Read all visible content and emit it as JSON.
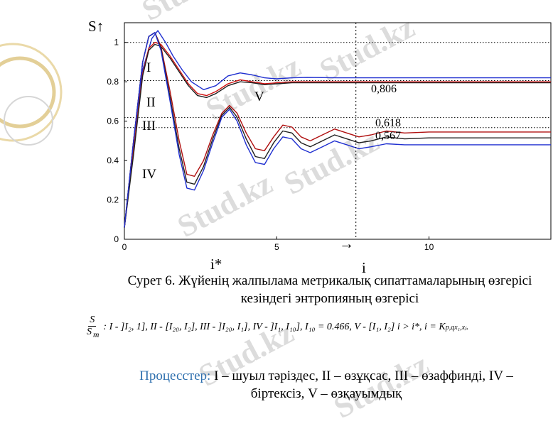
{
  "chart_data": {
    "type": "line",
    "x_axis": {
      "min": 0,
      "max": 14,
      "ticks": [
        0,
        5,
        10
      ],
      "label": "i",
      "marker_label": "i*",
      "marker_x": 7.6
    },
    "y_axis": {
      "min": 0,
      "max": 1.1,
      "ticks": [
        0,
        0.2,
        0.4,
        0.6,
        0.8,
        1
      ],
      "label": "S↑"
    },
    "reference_lines": [
      1,
      0.806,
      0.618,
      0.567
    ],
    "reference_labels": [
      "0,806",
      "0,618",
      "0,567"
    ],
    "series_labels": [
      "I",
      "II",
      "III",
      "IV",
      "V"
    ],
    "series": [
      {
        "color": "#1f2fd0",
        "points": [
          [
            0,
            0.06
          ],
          [
            0.3,
            0.45
          ],
          [
            0.6,
            0.86
          ],
          [
            0.9,
            1.02
          ],
          [
            1.1,
            1.06
          ],
          [
            1.35,
            1.0
          ],
          [
            1.6,
            0.93
          ],
          [
            1.9,
            0.86
          ],
          [
            2.2,
            0.8
          ],
          [
            2.6,
            0.76
          ],
          [
            3.0,
            0.78
          ],
          [
            3.4,
            0.83
          ],
          [
            3.8,
            0.845
          ],
          [
            4.2,
            0.835
          ],
          [
            4.6,
            0.82
          ],
          [
            5.0,
            0.815
          ],
          [
            5.5,
            0.82
          ],
          [
            6,
            0.822
          ],
          [
            7,
            0.82
          ],
          [
            8,
            0.82
          ],
          [
            9,
            0.82
          ],
          [
            10,
            0.82
          ],
          [
            11,
            0.82
          ],
          [
            12,
            0.82
          ],
          [
            13,
            0.82
          ],
          [
            14,
            0.82
          ]
        ]
      },
      {
        "color": "#d01010",
        "points": [
          [
            0,
            0.06
          ],
          [
            0.3,
            0.45
          ],
          [
            0.6,
            0.84
          ],
          [
            0.8,
            0.97
          ],
          [
            1.0,
            1.0
          ],
          [
            1.2,
            0.99
          ],
          [
            1.5,
            0.93
          ],
          [
            1.8,
            0.86
          ],
          [
            2.1,
            0.79
          ],
          [
            2.4,
            0.74
          ],
          [
            2.7,
            0.73
          ],
          [
            3.0,
            0.75
          ],
          [
            3.4,
            0.79
          ],
          [
            3.8,
            0.81
          ],
          [
            4.2,
            0.8
          ],
          [
            4.6,
            0.79
          ],
          [
            5.0,
            0.795
          ],
          [
            5.5,
            0.8
          ],
          [
            6,
            0.8
          ],
          [
            7,
            0.8
          ],
          [
            8,
            0.8
          ],
          [
            9,
            0.8
          ],
          [
            10,
            0.8
          ],
          [
            11,
            0.8
          ],
          [
            12,
            0.8
          ],
          [
            13,
            0.8
          ],
          [
            14,
            0.8
          ]
        ]
      },
      {
        "color": "#202020",
        "points": [
          [
            0,
            0.06
          ],
          [
            0.3,
            0.43
          ],
          [
            0.6,
            0.83
          ],
          [
            0.8,
            0.96
          ],
          [
            1.0,
            0.99
          ],
          [
            1.2,
            0.98
          ],
          [
            1.5,
            0.92
          ],
          [
            1.8,
            0.85
          ],
          [
            2.1,
            0.78
          ],
          [
            2.4,
            0.73
          ],
          [
            2.7,
            0.72
          ],
          [
            3.0,
            0.74
          ],
          [
            3.4,
            0.78
          ],
          [
            3.8,
            0.8
          ],
          [
            4.2,
            0.795
          ],
          [
            4.6,
            0.785
          ],
          [
            5.0,
            0.79
          ],
          [
            5.5,
            0.795
          ],
          [
            6,
            0.795
          ],
          [
            7,
            0.795
          ],
          [
            8,
            0.795
          ],
          [
            9,
            0.795
          ],
          [
            10,
            0.795
          ],
          [
            11,
            0.795
          ],
          [
            12,
            0.795
          ],
          [
            13,
            0.795
          ],
          [
            14,
            0.795
          ]
        ]
      },
      {
        "color": "#b01010",
        "points": [
          [
            0,
            0.06
          ],
          [
            0.3,
            0.5
          ],
          [
            0.6,
            0.9
          ],
          [
            0.8,
            1.03
          ],
          [
            1.0,
            1.05
          ],
          [
            1.2,
            0.98
          ],
          [
            1.5,
            0.75
          ],
          [
            1.8,
            0.5
          ],
          [
            2.05,
            0.33
          ],
          [
            2.3,
            0.32
          ],
          [
            2.6,
            0.4
          ],
          [
            2.9,
            0.53
          ],
          [
            3.2,
            0.64
          ],
          [
            3.45,
            0.68
          ],
          [
            3.7,
            0.64
          ],
          [
            4.0,
            0.54
          ],
          [
            4.3,
            0.46
          ],
          [
            4.6,
            0.45
          ],
          [
            4.9,
            0.52
          ],
          [
            5.2,
            0.58
          ],
          [
            5.5,
            0.57
          ],
          [
            5.8,
            0.52
          ],
          [
            6.1,
            0.5
          ],
          [
            6.5,
            0.53
          ],
          [
            6.9,
            0.56
          ],
          [
            7.3,
            0.54
          ],
          [
            7.7,
            0.52
          ],
          [
            8.1,
            0.53
          ],
          [
            8.6,
            0.55
          ],
          [
            9.2,
            0.54
          ],
          [
            10,
            0.545
          ],
          [
            11,
            0.545
          ],
          [
            12,
            0.545
          ],
          [
            13,
            0.545
          ],
          [
            14,
            0.545
          ]
        ]
      },
      {
        "color": "#202020",
        "points": [
          [
            0,
            0.06
          ],
          [
            0.3,
            0.5
          ],
          [
            0.6,
            0.9
          ],
          [
            0.8,
            1.03
          ],
          [
            1.0,
            1.05
          ],
          [
            1.2,
            0.97
          ],
          [
            1.5,
            0.72
          ],
          [
            1.8,
            0.46
          ],
          [
            2.05,
            0.29
          ],
          [
            2.3,
            0.28
          ],
          [
            2.6,
            0.37
          ],
          [
            2.9,
            0.51
          ],
          [
            3.2,
            0.63
          ],
          [
            3.45,
            0.67
          ],
          [
            3.7,
            0.62
          ],
          [
            4.0,
            0.51
          ],
          [
            4.3,
            0.42
          ],
          [
            4.6,
            0.41
          ],
          [
            4.9,
            0.49
          ],
          [
            5.2,
            0.55
          ],
          [
            5.5,
            0.54
          ],
          [
            5.8,
            0.49
          ],
          [
            6.1,
            0.47
          ],
          [
            6.5,
            0.5
          ],
          [
            6.9,
            0.53
          ],
          [
            7.3,
            0.51
          ],
          [
            7.7,
            0.49
          ],
          [
            8.1,
            0.5
          ],
          [
            8.6,
            0.52
          ],
          [
            9.2,
            0.51
          ],
          [
            10,
            0.515
          ],
          [
            11,
            0.515
          ],
          [
            12,
            0.515
          ],
          [
            13,
            0.515
          ],
          [
            14,
            0.515
          ]
        ]
      },
      {
        "color": "#1f2fd0",
        "points": [
          [
            0,
            0.06
          ],
          [
            0.3,
            0.5
          ],
          [
            0.6,
            0.9
          ],
          [
            0.8,
            1.03
          ],
          [
            1.0,
            1.05
          ],
          [
            1.2,
            0.96
          ],
          [
            1.5,
            0.7
          ],
          [
            1.8,
            0.43
          ],
          [
            2.05,
            0.26
          ],
          [
            2.3,
            0.25
          ],
          [
            2.6,
            0.35
          ],
          [
            2.9,
            0.49
          ],
          [
            3.2,
            0.62
          ],
          [
            3.45,
            0.66
          ],
          [
            3.7,
            0.6
          ],
          [
            4.0,
            0.48
          ],
          [
            4.3,
            0.39
          ],
          [
            4.6,
            0.38
          ],
          [
            4.9,
            0.46
          ],
          [
            5.2,
            0.52
          ],
          [
            5.5,
            0.51
          ],
          [
            5.8,
            0.46
          ],
          [
            6.1,
            0.44
          ],
          [
            6.5,
            0.47
          ],
          [
            6.9,
            0.5
          ],
          [
            7.3,
            0.48
          ],
          [
            7.7,
            0.46
          ],
          [
            8.1,
            0.47
          ],
          [
            8.6,
            0.485
          ],
          [
            9.2,
            0.48
          ],
          [
            10,
            0.48
          ],
          [
            11,
            0.48
          ],
          [
            12,
            0.48
          ],
          [
            13,
            0.48
          ],
          [
            14,
            0.48
          ]
        ]
      }
    ]
  },
  "caption": {
    "line1": "Сурет 6. Жүйенің жалпылама метрикалық сипаттамаларының өзгерісі",
    "line2": "кезіндегі энтропияның өзгерісі"
  },
  "formula": {
    "num": "S",
    "den": "S",
    "den_sub": "m",
    "text": ": I - ]I₂, 1], II - [I₂₀, I₂], III - ]I₂₀, I₁], IV - ]I₁, I₁₀], I₁₀ = 0.466, V - [I₁, I₂] i > i*, i = K"
  },
  "processes": {
    "label": "Процесстер:",
    "line1": "I – шуыл тәріздес, II – өзұқсас, III – өзаффинді, IV –",
    "line2": "біртексіз, V – өзқауымдық"
  },
  "watermark": "Stud.kz",
  "colors": {
    "blue": "#1f2fd0",
    "red": "#d01010",
    "dark": "#202020",
    "ring": "#e0c98a"
  }
}
